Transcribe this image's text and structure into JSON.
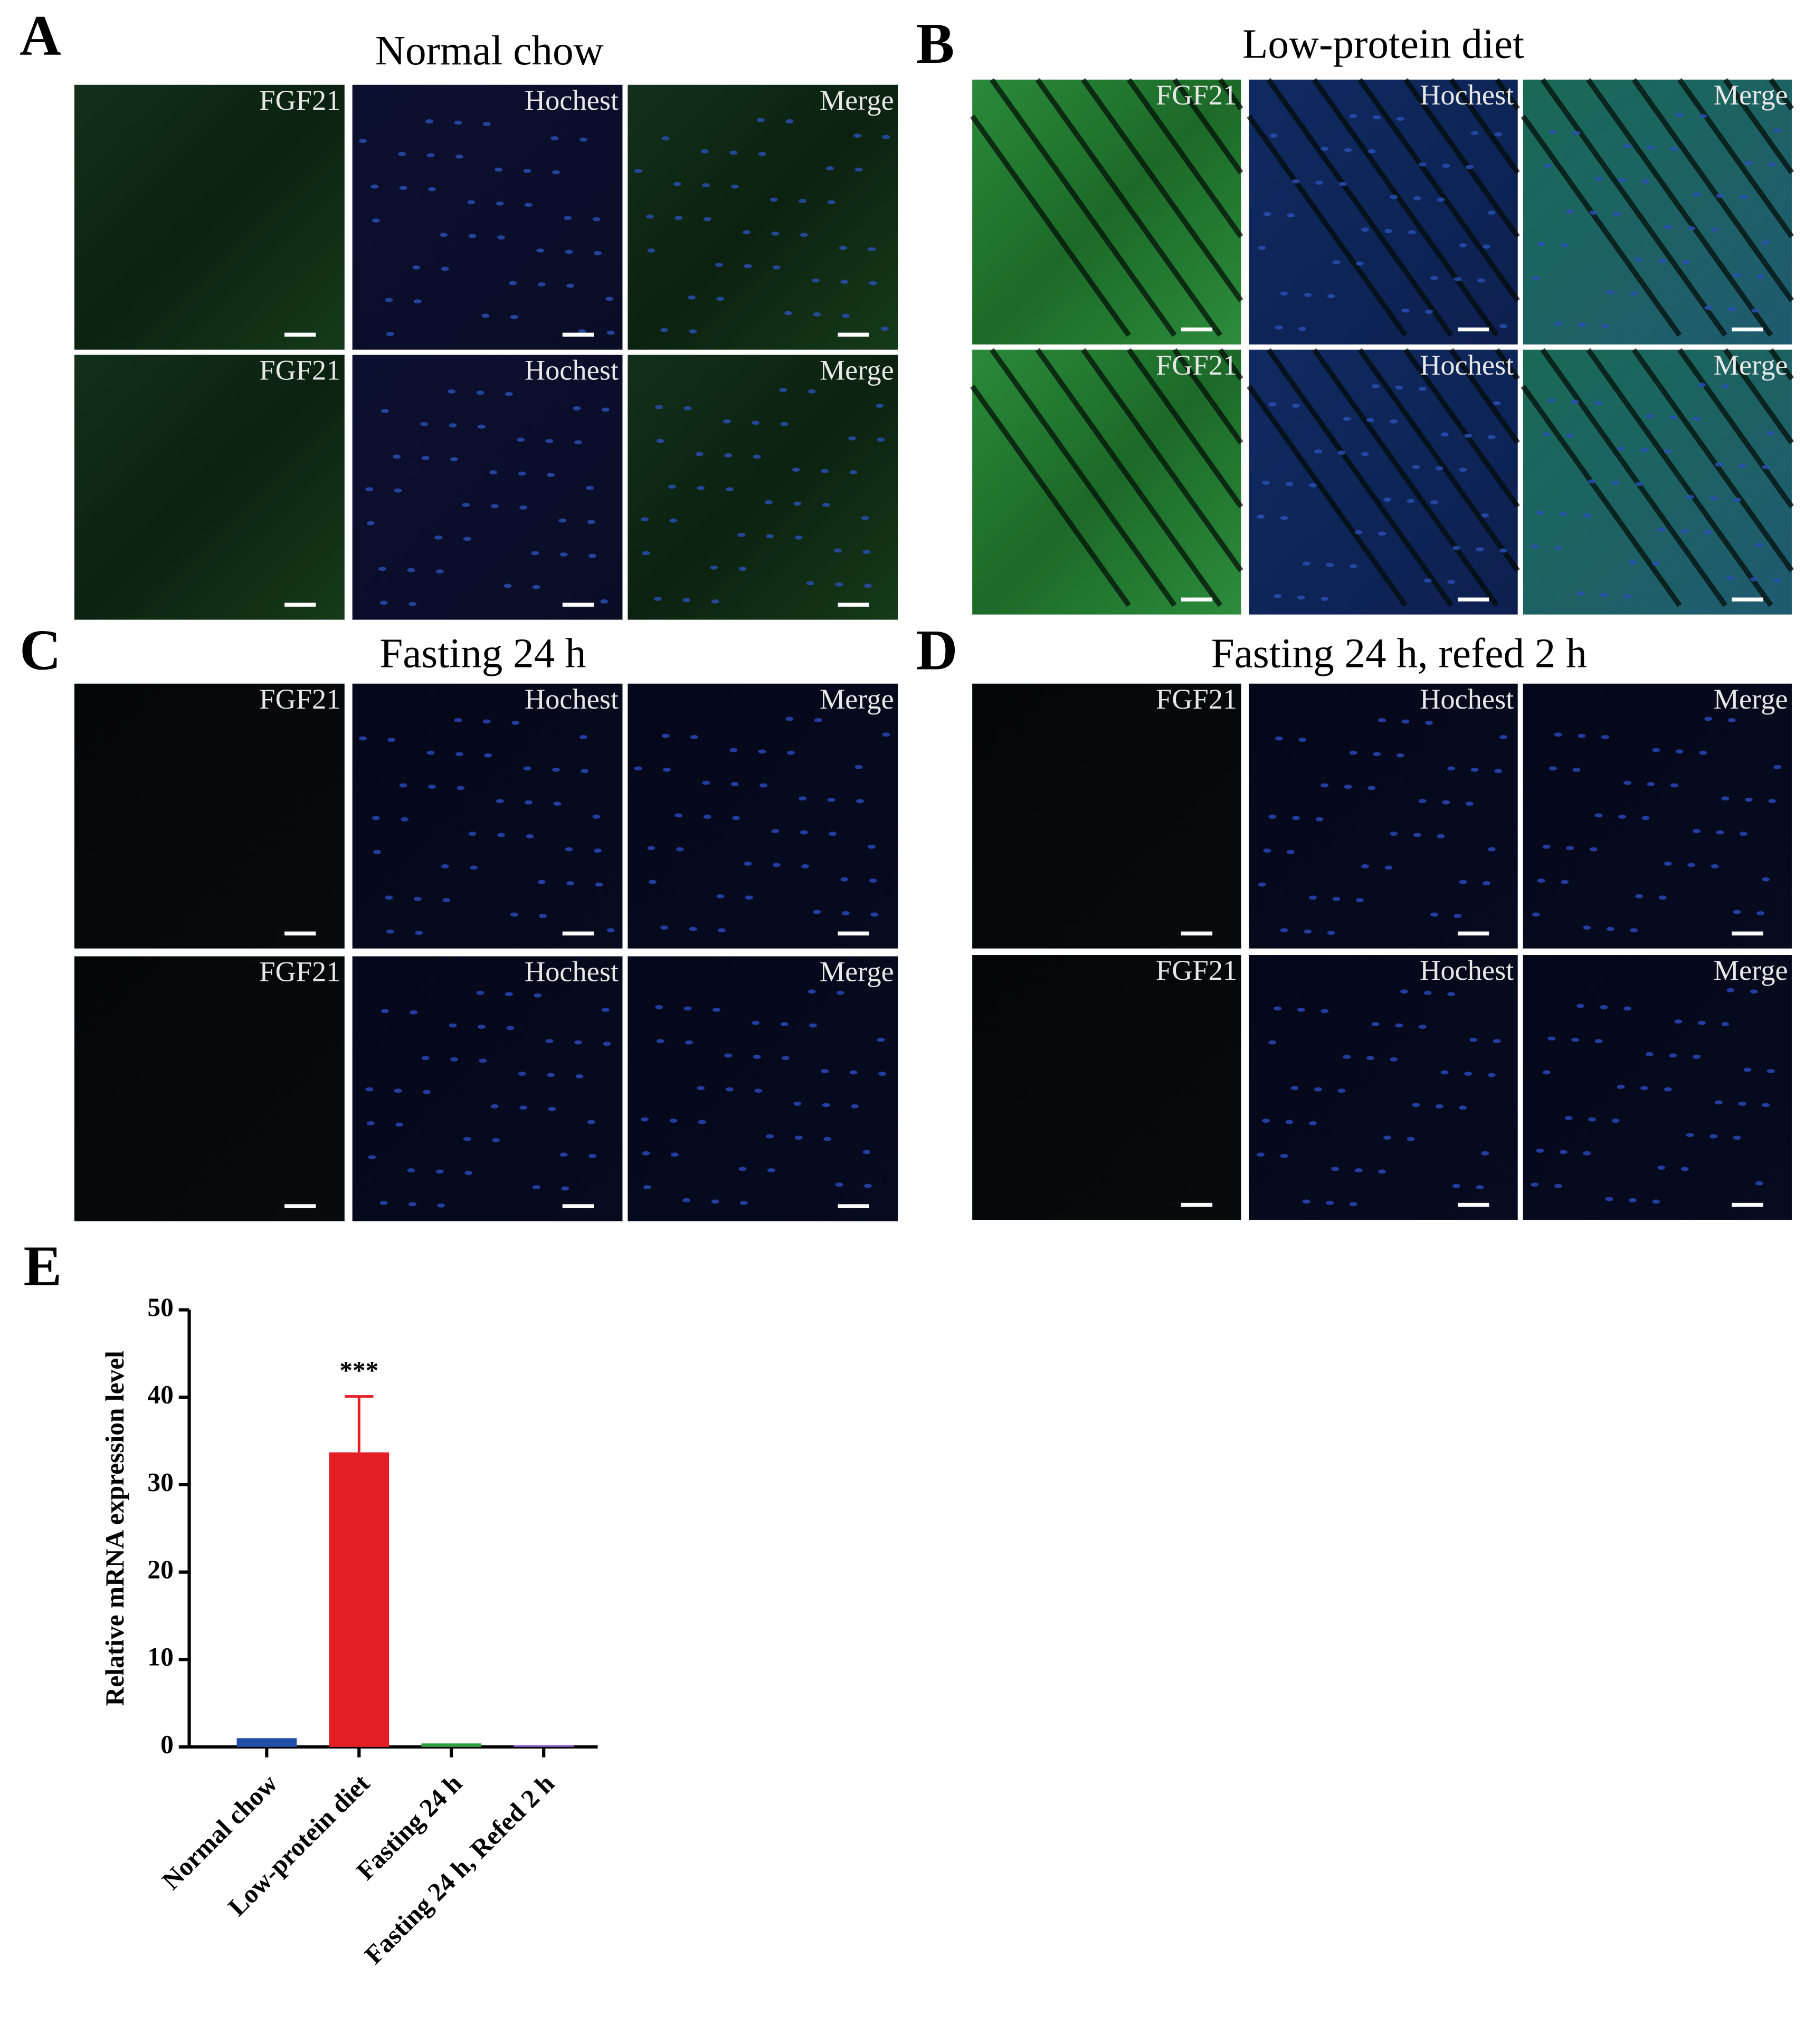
{
  "panels": [
    {
      "letter": "A",
      "title": "Normal chow",
      "rows": [
        [
          "FGF21",
          "Hochest",
          "Merge"
        ],
        [
          "FGF21",
          "Hochest",
          "Merge"
        ]
      ]
    },
    {
      "letter": "B",
      "title": "Low-protein diet",
      "rows": [
        [
          "FGF21",
          "Hochest",
          "Merge"
        ],
        [
          "FGF21",
          "Hochest",
          "Merge"
        ]
      ]
    },
    {
      "letter": "C",
      "title": "Fasting 24 h",
      "rows": [
        [
          "FGF21",
          "Hochest",
          "Merge"
        ],
        [
          "FGF21",
          "Hochest",
          "Merge"
        ]
      ]
    },
    {
      "letter": "D",
      "title": "Fasting 24 h, refed 2 h",
      "rows": [
        [
          "FGF21",
          "Hochest",
          "Merge"
        ],
        [
          "FGF21",
          "Hochest",
          "Merge"
        ]
      ]
    }
  ],
  "chart_data": {
    "type": "bar",
    "label": "E",
    "y_label": "Relative mRNA expression level",
    "categories": [
      "Normal chow",
      "Low-protein diet",
      "Fasting 24 h",
      "Fasting 24 h, Refed 2 h"
    ],
    "values": [
      1.0,
      33.7,
      0.4,
      0.2
    ],
    "errors": [
      null,
      6.4,
      null,
      null
    ],
    "value_annotations": [
      null,
      "***",
      null,
      null
    ],
    "colors": [
      "#1f4fa8",
      "#e31e24",
      "#2e9e3e",
      "#8a5cc8"
    ],
    "ylim": [
      0,
      50
    ],
    "yticks": [
      0,
      10,
      20,
      30,
      40,
      50
    ]
  }
}
